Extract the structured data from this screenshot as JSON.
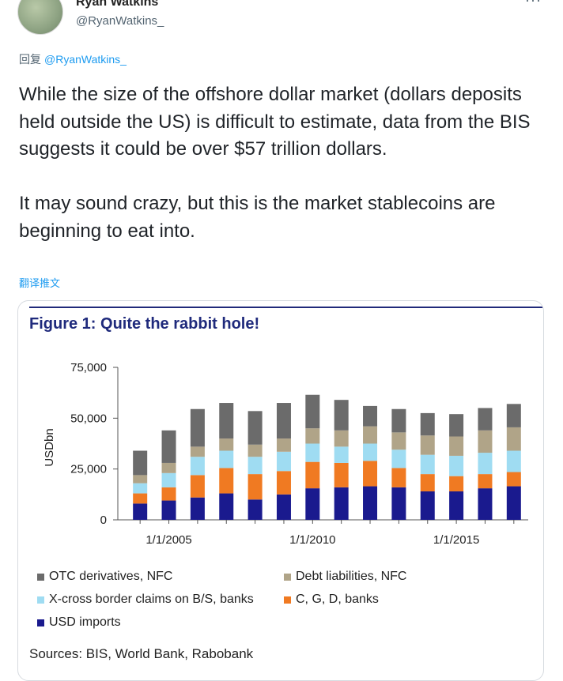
{
  "author": {
    "name": "Ryan Watkins",
    "handle": "@RyanWatkins_"
  },
  "reply": {
    "label": "回复",
    "mention": "@RyanWatkins_"
  },
  "tweet": {
    "text": "While the size of the offshore dollar market (dollars deposits held outside the US) is difficult to estimate, data from the BIS suggests it could be over $57 trillion dollars.\n\nIt may sound crazy, but this is the market stablecoins are beginning to eat into.",
    "translate_label": "翻译推文"
  },
  "icons": {
    "more": "more-horizontal-icon"
  },
  "figure": {
    "title": "Figure 1: Quite the rabbit hole!",
    "sources": "Sources: BIS, World Bank, Rabobank"
  },
  "chart_data": {
    "type": "bar",
    "stacked": true,
    "title": "Figure 1: Quite the rabbit hole!",
    "ylabel": "USDbn",
    "ylim": [
      0,
      75000
    ],
    "yticks": [
      0,
      25000,
      50000,
      75000
    ],
    "ytick_labels": [
      "0",
      "25,000",
      "50,000",
      "75,000"
    ],
    "xtick_labels": [
      {
        "label": "1/1/2005",
        "index": 1
      },
      {
        "label": "1/1/2010",
        "index": 6
      },
      {
        "label": "1/1/2015",
        "index": 11
      }
    ],
    "categories": [
      "2004",
      "2005",
      "2006",
      "2007",
      "2008",
      "2009",
      "2010",
      "2011",
      "2012",
      "2013",
      "2014",
      "2015",
      "2016",
      "2017"
    ],
    "series": [
      {
        "name": "USD imports",
        "color": "#1a1a8e",
        "values": [
          8000,
          9500,
          11000,
          13000,
          10000,
          12500,
          15500,
          16000,
          16500,
          16000,
          14000,
          14000,
          15500,
          16500
        ]
      },
      {
        "name": "C, G, D, banks",
        "color": "#f07a22",
        "values": [
          5000,
          6500,
          11000,
          12500,
          12500,
          11500,
          13000,
          12000,
          12500,
          9500,
          8500,
          7500,
          7000,
          7000
        ]
      },
      {
        "name": "X-cross border claims on B/S, banks",
        "color": "#9fdcf2",
        "values": [
          5000,
          7000,
          9000,
          8500,
          8500,
          9500,
          9000,
          8000,
          8500,
          9000,
          9500,
          10000,
          10500,
          10500
        ]
      },
      {
        "name": "Debt liabilities, NFC",
        "color": "#b0a488",
        "values": [
          4000,
          5000,
          5000,
          6000,
          6000,
          6500,
          7500,
          8000,
          8500,
          8500,
          9500,
          9500,
          11000,
          11500
        ]
      },
      {
        "name": "OTC derivatives, NFC",
        "color": "#6b6b6b",
        "values": [
          12000,
          16000,
          18500,
          17500,
          16500,
          17500,
          16500,
          15000,
          10000,
          11500,
          11000,
          11000,
          11000,
          11500
        ]
      }
    ],
    "legend_position": "bottom",
    "grid": false
  }
}
